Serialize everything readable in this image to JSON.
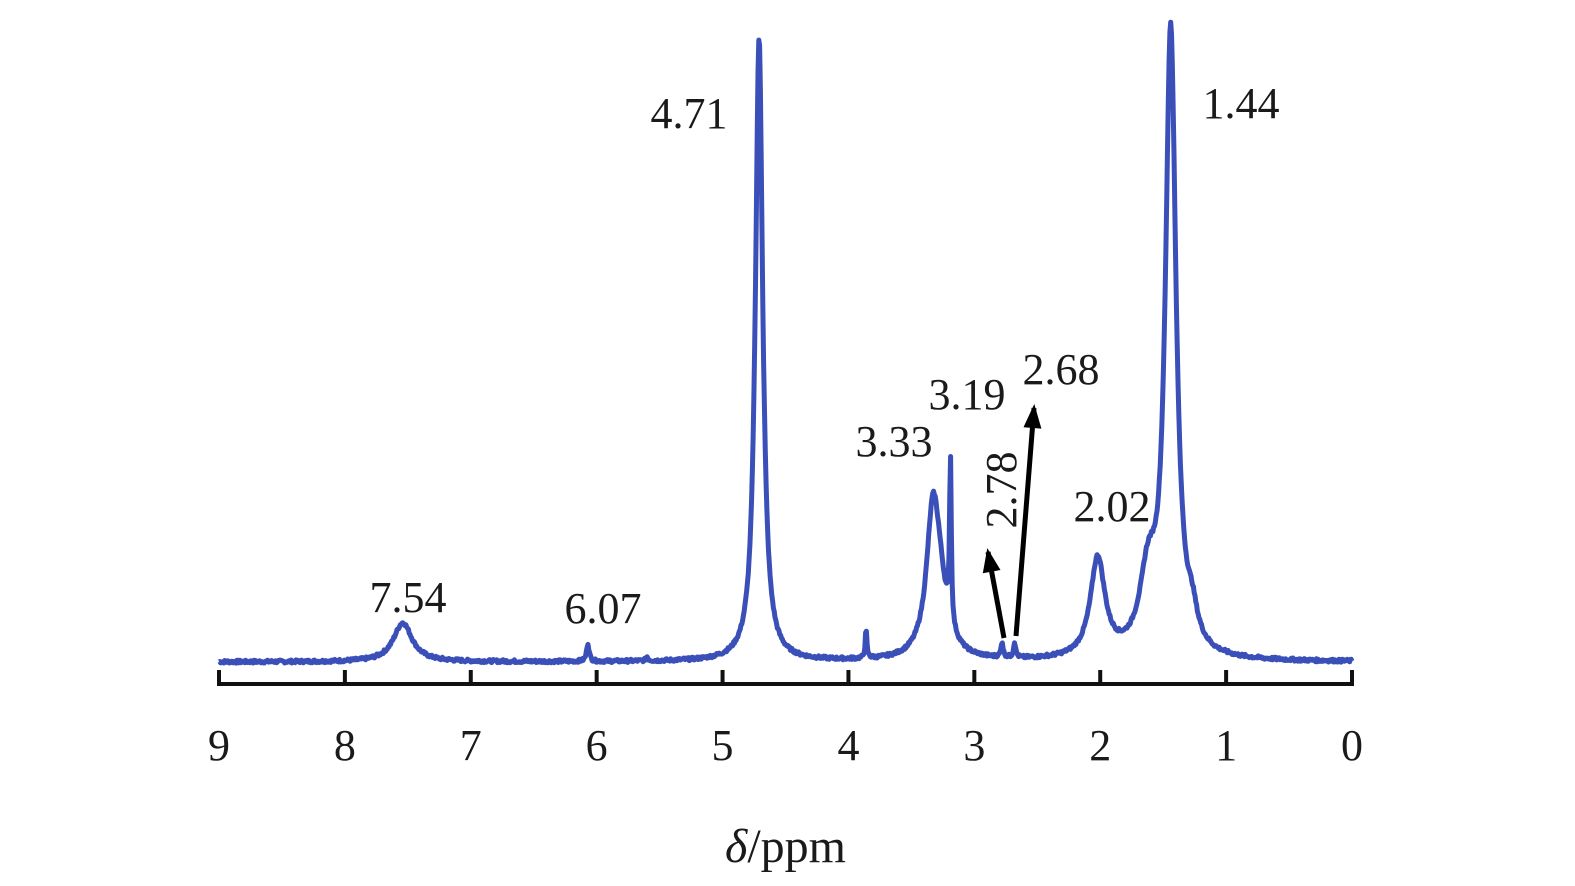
{
  "chart_data": {
    "type": "line",
    "title": "",
    "xlabel_italic": "δ",
    "xlabel_rest": "/ppm",
    "ylabel": "",
    "xlim": [
      9,
      0
    ],
    "x_reversed": true,
    "ylim": [
      0,
      1
    ],
    "grid": false,
    "legend": "none",
    "x_ticks": [
      "9",
      "8",
      "7",
      "6",
      "5",
      "4",
      "3",
      "2",
      "1",
      "0"
    ],
    "line_color": "#3a4fb8",
    "series": [
      {
        "name": "",
        "baseline": 0.03,
        "peaks": [
          {
            "x": 7.54,
            "height": 0.075,
            "width": 0.09
          },
          {
            "x": 6.07,
            "height": 0.035,
            "width": 0.012
          },
          {
            "x": 5.6,
            "height": 0.008,
            "width": 0.01
          },
          {
            "x": 4.71,
            "height": 1.2,
            "width": 0.035
          },
          {
            "x": 3.86,
            "height": 0.055,
            "width": 0.008
          },
          {
            "x": 3.33,
            "height": 0.24,
            "width": 0.06
          },
          {
            "x": 3.28,
            "height": 0.11,
            "width": 0.08
          },
          {
            "x": 3.19,
            "height": 0.32,
            "width": 0.008
          },
          {
            "x": 2.78,
            "height": 0.03,
            "width": 0.01
          },
          {
            "x": 2.68,
            "height": 0.03,
            "width": 0.01
          },
          {
            "x": 2.02,
            "height": 0.19,
            "width": 0.07
          },
          {
            "x": 1.62,
            "height": 0.14,
            "width": 0.08
          },
          {
            "x": 1.44,
            "height": 1.2,
            "width": 0.05
          },
          {
            "x": 1.27,
            "height": 0.05,
            "width": 0.05
          }
        ]
      }
    ],
    "peak_labels": [
      {
        "text": "7.54",
        "x": 7.54
      },
      {
        "text": "6.07",
        "x": 6.07
      },
      {
        "text": "4.71",
        "x": 4.71
      },
      {
        "text": "3.33",
        "x": 3.33
      },
      {
        "text": "3.19",
        "x": 3.19
      },
      {
        "text": "2.78",
        "x": 2.78
      },
      {
        "text": "2.68",
        "x": 2.68
      },
      {
        "text": "2.02",
        "x": 2.02
      },
      {
        "text": "1.44",
        "x": 1.44
      }
    ]
  }
}
